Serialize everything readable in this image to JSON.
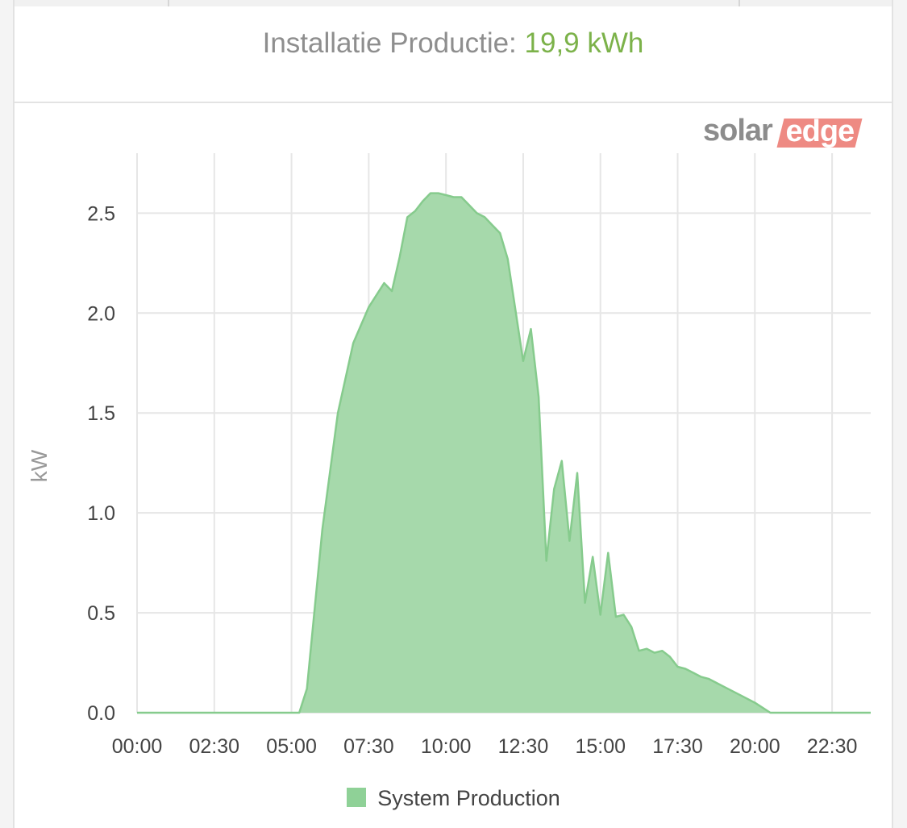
{
  "header": {
    "label": "Installatie Productie:",
    "value": "19,9 kWh"
  },
  "logo": {
    "part1": "solar",
    "part2": "edge"
  },
  "colors": {
    "accent_value": "#7cb24a",
    "series_fill": "#a6d9ab",
    "series_line": "#86cb8d",
    "legend_swatch": "#8fd197",
    "grid": "#e6e6e6",
    "logo_accent": "#ee8a83"
  },
  "chart_data": {
    "type": "area",
    "title": "",
    "xlabel": "",
    "ylabel": "kW",
    "ylim": [
      0,
      2.8
    ],
    "yticks": [
      0.0,
      0.5,
      1.0,
      1.5,
      2.0,
      2.5
    ],
    "ytick_labels": [
      "0.0",
      "0.5",
      "1.0",
      "1.5",
      "2.0",
      "2.5"
    ],
    "xlim": [
      "00:00",
      "23:45"
    ],
    "xticks": [
      "00:00",
      "02:30",
      "05:00",
      "07:30",
      "10:00",
      "12:30",
      "15:00",
      "17:30",
      "20:00",
      "22:30"
    ],
    "grid": true,
    "legend_position": "bottom-center",
    "series": [
      {
        "name": "System Production",
        "x": [
          "00:00",
          "05:15",
          "05:30",
          "06:00",
          "06:30",
          "07:00",
          "07:30",
          "08:00",
          "08:15",
          "08:30",
          "08:45",
          "09:00",
          "09:15",
          "09:30",
          "09:45",
          "10:00",
          "10:15",
          "10:30",
          "10:45",
          "11:00",
          "11:15",
          "11:30",
          "11:45",
          "12:00",
          "12:30",
          "12:45",
          "13:00",
          "13:15",
          "13:30",
          "13:45",
          "14:00",
          "14:15",
          "14:30",
          "14:45",
          "15:00",
          "15:15",
          "15:30",
          "15:45",
          "16:00",
          "16:15",
          "16:30",
          "16:45",
          "17:00",
          "17:15",
          "17:30",
          "17:45",
          "18:00",
          "18:15",
          "18:30",
          "19:00",
          "19:30",
          "20:00",
          "20:30",
          "21:00",
          "21:30",
          "23:45"
        ],
        "y": [
          0,
          0,
          0.12,
          0.92,
          1.5,
          1.85,
          2.03,
          2.15,
          2.11,
          2.28,
          2.48,
          2.51,
          2.56,
          2.6,
          2.6,
          2.59,
          2.58,
          2.58,
          2.54,
          2.5,
          2.48,
          2.44,
          2.4,
          2.27,
          1.76,
          1.92,
          1.58,
          0.76,
          1.12,
          1.26,
          0.86,
          1.2,
          0.55,
          0.78,
          0.49,
          0.8,
          0.48,
          0.49,
          0.43,
          0.31,
          0.32,
          0.3,
          0.31,
          0.28,
          0.23,
          0.22,
          0.2,
          0.18,
          0.17,
          0.13,
          0.09,
          0.05,
          0,
          0,
          0,
          0
        ]
      }
    ]
  }
}
